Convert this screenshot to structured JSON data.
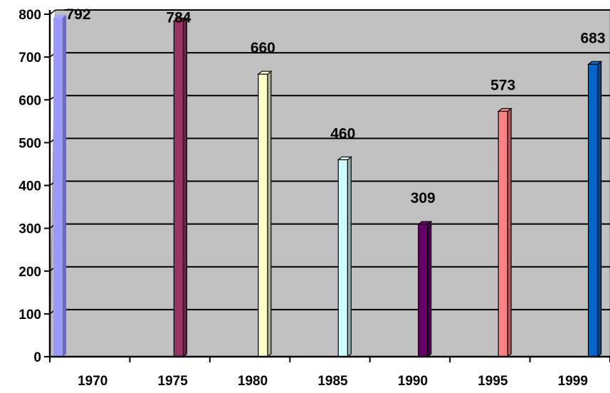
{
  "chart_data": {
    "type": "bar",
    "title": "",
    "xlabel": "",
    "ylabel": "",
    "categories": [
      "1970",
      "1975",
      "1980",
      "1985",
      "1990",
      "1995",
      "1999"
    ],
    "values": [
      792,
      784,
      660,
      460,
      309,
      573,
      683
    ],
    "value_labels": [
      "792",
      "784",
      "660",
      "460",
      "309",
      "573",
      "683"
    ],
    "y_ticks": [
      "0",
      "100",
      "200",
      "300",
      "400",
      "500",
      "600",
      "700",
      "800"
    ],
    "ylim": [
      0,
      800
    ],
    "grid": true,
    "legend": "none",
    "bar_colors": [
      "#9999ff",
      "#993366",
      "#ffffcc",
      "#ccffff",
      "#660066",
      "#ff8080",
      "#0066cc"
    ],
    "plot_background": "#c0c0c0"
  }
}
